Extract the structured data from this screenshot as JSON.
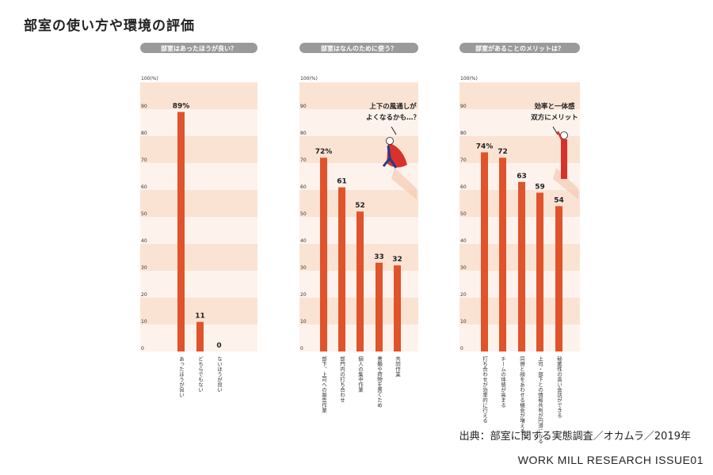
{
  "page_title": "部室の使い方や環境の評価",
  "source": "出典：部室に関する実態調査／オカムラ／2019年",
  "footer": "WORK MILL RESEARCH ISSUE01",
  "colors": {
    "bar": "#e0532b",
    "band_light": "#fbe3d3",
    "band_pale": "#fdf3ec",
    "header_bg": "#9a9a9a",
    "header_text": "#ffffff",
    "mascot_red": "#d8322a"
  },
  "chart_data": [
    {
      "type": "bar",
      "title": "部室はあったほうが良い？",
      "y_unit_label": "100(%)",
      "ylim": [
        0,
        100
      ],
      "yticks": [
        0,
        10,
        20,
        30,
        40,
        50,
        60,
        70,
        80,
        90
      ],
      "categories": [
        "あったほうが良い",
        "どちらでもない",
        "ないほうが良い"
      ],
      "values": [
        89,
        11,
        0
      ],
      "value_labels": [
        "89%",
        "11",
        "0"
      ]
    },
    {
      "type": "bar",
      "title": "部室はなんのために使う？",
      "y_unit_label": "100(%)",
      "ylim": [
        0,
        100
      ],
      "yticks": [
        0,
        10,
        20,
        30,
        40,
        50,
        60,
        70,
        80,
        90
      ],
      "categories": [
        "部下、上司への報告作業",
        "部門内の打ち合わせ",
        "個人の集中作業",
        "書類や荷物を置くため",
        "共同作業"
      ],
      "values": [
        72,
        61,
        52,
        33,
        32
      ],
      "value_labels": [
        "72%",
        "61",
        "52",
        "33",
        "32"
      ],
      "annotation": [
        "上下の風通しが",
        "よくなるかも…？"
      ]
    },
    {
      "type": "bar",
      "title": "部室があることのメリットは？",
      "y_unit_label": "100(%)",
      "ylim": [
        0,
        100
      ],
      "yticks": [
        0,
        10,
        20,
        30,
        40,
        50,
        60,
        70,
        80,
        90
      ],
      "categories": [
        "打ち合わせが効率的に行える",
        "チームの体感が高まる",
        "同僚と顔をあわせる機会が増える",
        "上司・部下との情報共有が円滑になる",
        "秘匿性の高い会話ができる"
      ],
      "values": [
        74,
        72,
        63,
        59,
        54
      ],
      "value_labels": [
        "74%",
        "72",
        "63",
        "59",
        "54"
      ],
      "annotation": [
        "効率と一体感",
        "双方にメリット"
      ]
    }
  ]
}
